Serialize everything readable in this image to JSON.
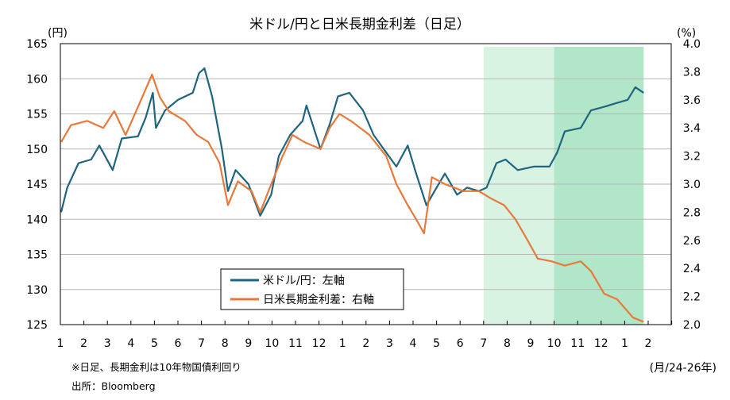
{
  "chart_data": {
    "type": "line",
    "title": "米ドル/円と日米長期金利差（日足）",
    "left_unit": "(円)",
    "right_unit": "(%)",
    "x_unit": "(月/24-26年)",
    "ylim_left": [
      125,
      165
    ],
    "yticks_left": [
      "165",
      "160",
      "155",
      "150",
      "145",
      "140",
      "135",
      "130",
      "125"
    ],
    "ylim_right": [
      2.0,
      4.0
    ],
    "yticks_right": [
      "4.0",
      "3.8",
      "3.6",
      "3.4",
      "3.2",
      "3.0",
      "2.8",
      "2.6",
      "2.4",
      "2.2",
      "2.0"
    ],
    "xrange": [
      "2024-01-01",
      "2026-03-01"
    ],
    "xticks": [
      "1",
      "2",
      "3",
      "4",
      "5",
      "6",
      "7",
      "8",
      "9",
      "10",
      "11",
      "12",
      "1",
      "2",
      "3",
      "4",
      "5",
      "6",
      "7",
      "8",
      "9",
      "10",
      "11",
      "12",
      "1",
      "2"
    ],
    "grid": true,
    "legend_placement": "bottom-center",
    "shaded_periods": [
      {
        "from": "2025-07-01",
        "to": "2026-01-26",
        "color": "#d9f3e3"
      },
      {
        "from": "2025-10-01",
        "to": "2026-01-26",
        "color": "#b2e6c9"
      }
    ],
    "series": [
      {
        "name": "米ドル/円：左軸",
        "axis": "left",
        "color": "#1f6480",
        "points": [
          [
            "2024-01-02",
            141
          ],
          [
            "2024-01-10",
            144.5
          ],
          [
            "2024-01-25",
            148
          ],
          [
            "2024-02-10",
            148.5
          ],
          [
            "2024-02-20",
            150.5
          ],
          [
            "2024-03-08",
            147
          ],
          [
            "2024-03-20",
            151.5
          ],
          [
            "2024-04-10",
            151.8
          ],
          [
            "2024-04-20",
            154.5
          ],
          [
            "2024-04-29",
            158
          ],
          [
            "2024-05-03",
            153
          ],
          [
            "2024-05-15",
            155.5
          ],
          [
            "2024-06-01",
            157
          ],
          [
            "2024-06-20",
            158
          ],
          [
            "2024-06-28",
            160.8
          ],
          [
            "2024-07-05",
            161.5
          ],
          [
            "2024-07-15",
            157.5
          ],
          [
            "2024-07-28",
            150
          ],
          [
            "2024-08-05",
            144
          ],
          [
            "2024-08-15",
            147
          ],
          [
            "2024-09-01",
            145
          ],
          [
            "2024-09-16",
            140.5
          ],
          [
            "2024-09-30",
            143.5
          ],
          [
            "2024-10-10",
            149
          ],
          [
            "2024-10-25",
            152
          ],
          [
            "2024-11-10",
            154
          ],
          [
            "2024-11-15",
            156.2
          ],
          [
            "2024-12-03",
            150
          ],
          [
            "2024-12-15",
            153.5
          ],
          [
            "2024-12-26",
            157.5
          ],
          [
            "2025-01-10",
            158
          ],
          [
            "2025-01-28",
            155.5
          ],
          [
            "2025-02-10",
            152
          ],
          [
            "2025-02-25",
            149.5
          ],
          [
            "2025-03-10",
            147.5
          ],
          [
            "2025-03-25",
            150.5
          ],
          [
            "2025-04-05",
            146.5
          ],
          [
            "2025-04-18",
            142
          ],
          [
            "2025-05-01",
            144.5
          ],
          [
            "2025-05-12",
            146.5
          ],
          [
            "2025-05-28",
            143.5
          ],
          [
            "2025-06-10",
            144.5
          ],
          [
            "2025-06-25",
            144
          ],
          [
            "2025-07-05",
            144.5
          ],
          [
            "2025-07-18",
            148
          ],
          [
            "2025-07-30",
            148.5
          ],
          [
            "2025-08-15",
            147
          ],
          [
            "2025-09-05",
            147.5
          ],
          [
            "2025-09-25",
            147.5
          ],
          [
            "2025-10-05",
            149.5
          ],
          [
            "2025-10-15",
            152.5
          ],
          [
            "2025-11-05",
            153
          ],
          [
            "2025-11-18",
            155.5
          ],
          [
            "2025-12-05",
            156
          ],
          [
            "2025-12-20",
            156.5
          ],
          [
            "2026-01-05",
            157
          ],
          [
            "2026-01-15",
            158.8
          ],
          [
            "2026-01-26",
            158
          ]
        ]
      },
      {
        "name": "日米長期金利差：右軸",
        "axis": "right",
        "color": "#e8793a",
        "points": [
          [
            "2024-01-02",
            3.3
          ],
          [
            "2024-01-15",
            3.42
          ],
          [
            "2024-02-05",
            3.45
          ],
          [
            "2024-02-25",
            3.4
          ],
          [
            "2024-03-10",
            3.52
          ],
          [
            "2024-03-25",
            3.35
          ],
          [
            "2024-04-10",
            3.55
          ],
          [
            "2024-04-28",
            3.78
          ],
          [
            "2024-05-08",
            3.62
          ],
          [
            "2024-05-20",
            3.52
          ],
          [
            "2024-06-10",
            3.45
          ],
          [
            "2024-06-25",
            3.35
          ],
          [
            "2024-07-10",
            3.3
          ],
          [
            "2024-07-25",
            3.15
          ],
          [
            "2024-08-05",
            2.85
          ],
          [
            "2024-08-18",
            3.02
          ],
          [
            "2024-09-05",
            2.95
          ],
          [
            "2024-09-16",
            2.8
          ],
          [
            "2024-09-30",
            3.0
          ],
          [
            "2024-10-15",
            3.2
          ],
          [
            "2024-10-28",
            3.35
          ],
          [
            "2024-11-12",
            3.3
          ],
          [
            "2024-12-03",
            3.25
          ],
          [
            "2024-12-15",
            3.4
          ],
          [
            "2024-12-28",
            3.5
          ],
          [
            "2025-01-12",
            3.45
          ],
          [
            "2025-02-05",
            3.35
          ],
          [
            "2025-02-25",
            3.2
          ],
          [
            "2025-03-10",
            3.0
          ],
          [
            "2025-03-25",
            2.85
          ],
          [
            "2025-04-05",
            2.75
          ],
          [
            "2025-04-15",
            2.65
          ],
          [
            "2025-04-25",
            3.05
          ],
          [
            "2025-05-12",
            3.0
          ],
          [
            "2025-06-05",
            2.95
          ],
          [
            "2025-06-25",
            2.95
          ],
          [
            "2025-07-10",
            2.9
          ],
          [
            "2025-07-28",
            2.85
          ],
          [
            "2025-08-12",
            2.75
          ],
          [
            "2025-08-28",
            2.6
          ],
          [
            "2025-09-10",
            2.47
          ],
          [
            "2025-09-28",
            2.45
          ],
          [
            "2025-10-15",
            2.42
          ],
          [
            "2025-11-05",
            2.45
          ],
          [
            "2025-11-18",
            2.38
          ],
          [
            "2025-12-05",
            2.22
          ],
          [
            "2025-12-22",
            2.18
          ],
          [
            "2026-01-12",
            2.05
          ],
          [
            "2026-01-26",
            2.02
          ]
        ]
      }
    ]
  },
  "notes": {
    "footnote": "※日足、長期金利は10年物国債利回り",
    "source": "出所：Bloomberg"
  }
}
